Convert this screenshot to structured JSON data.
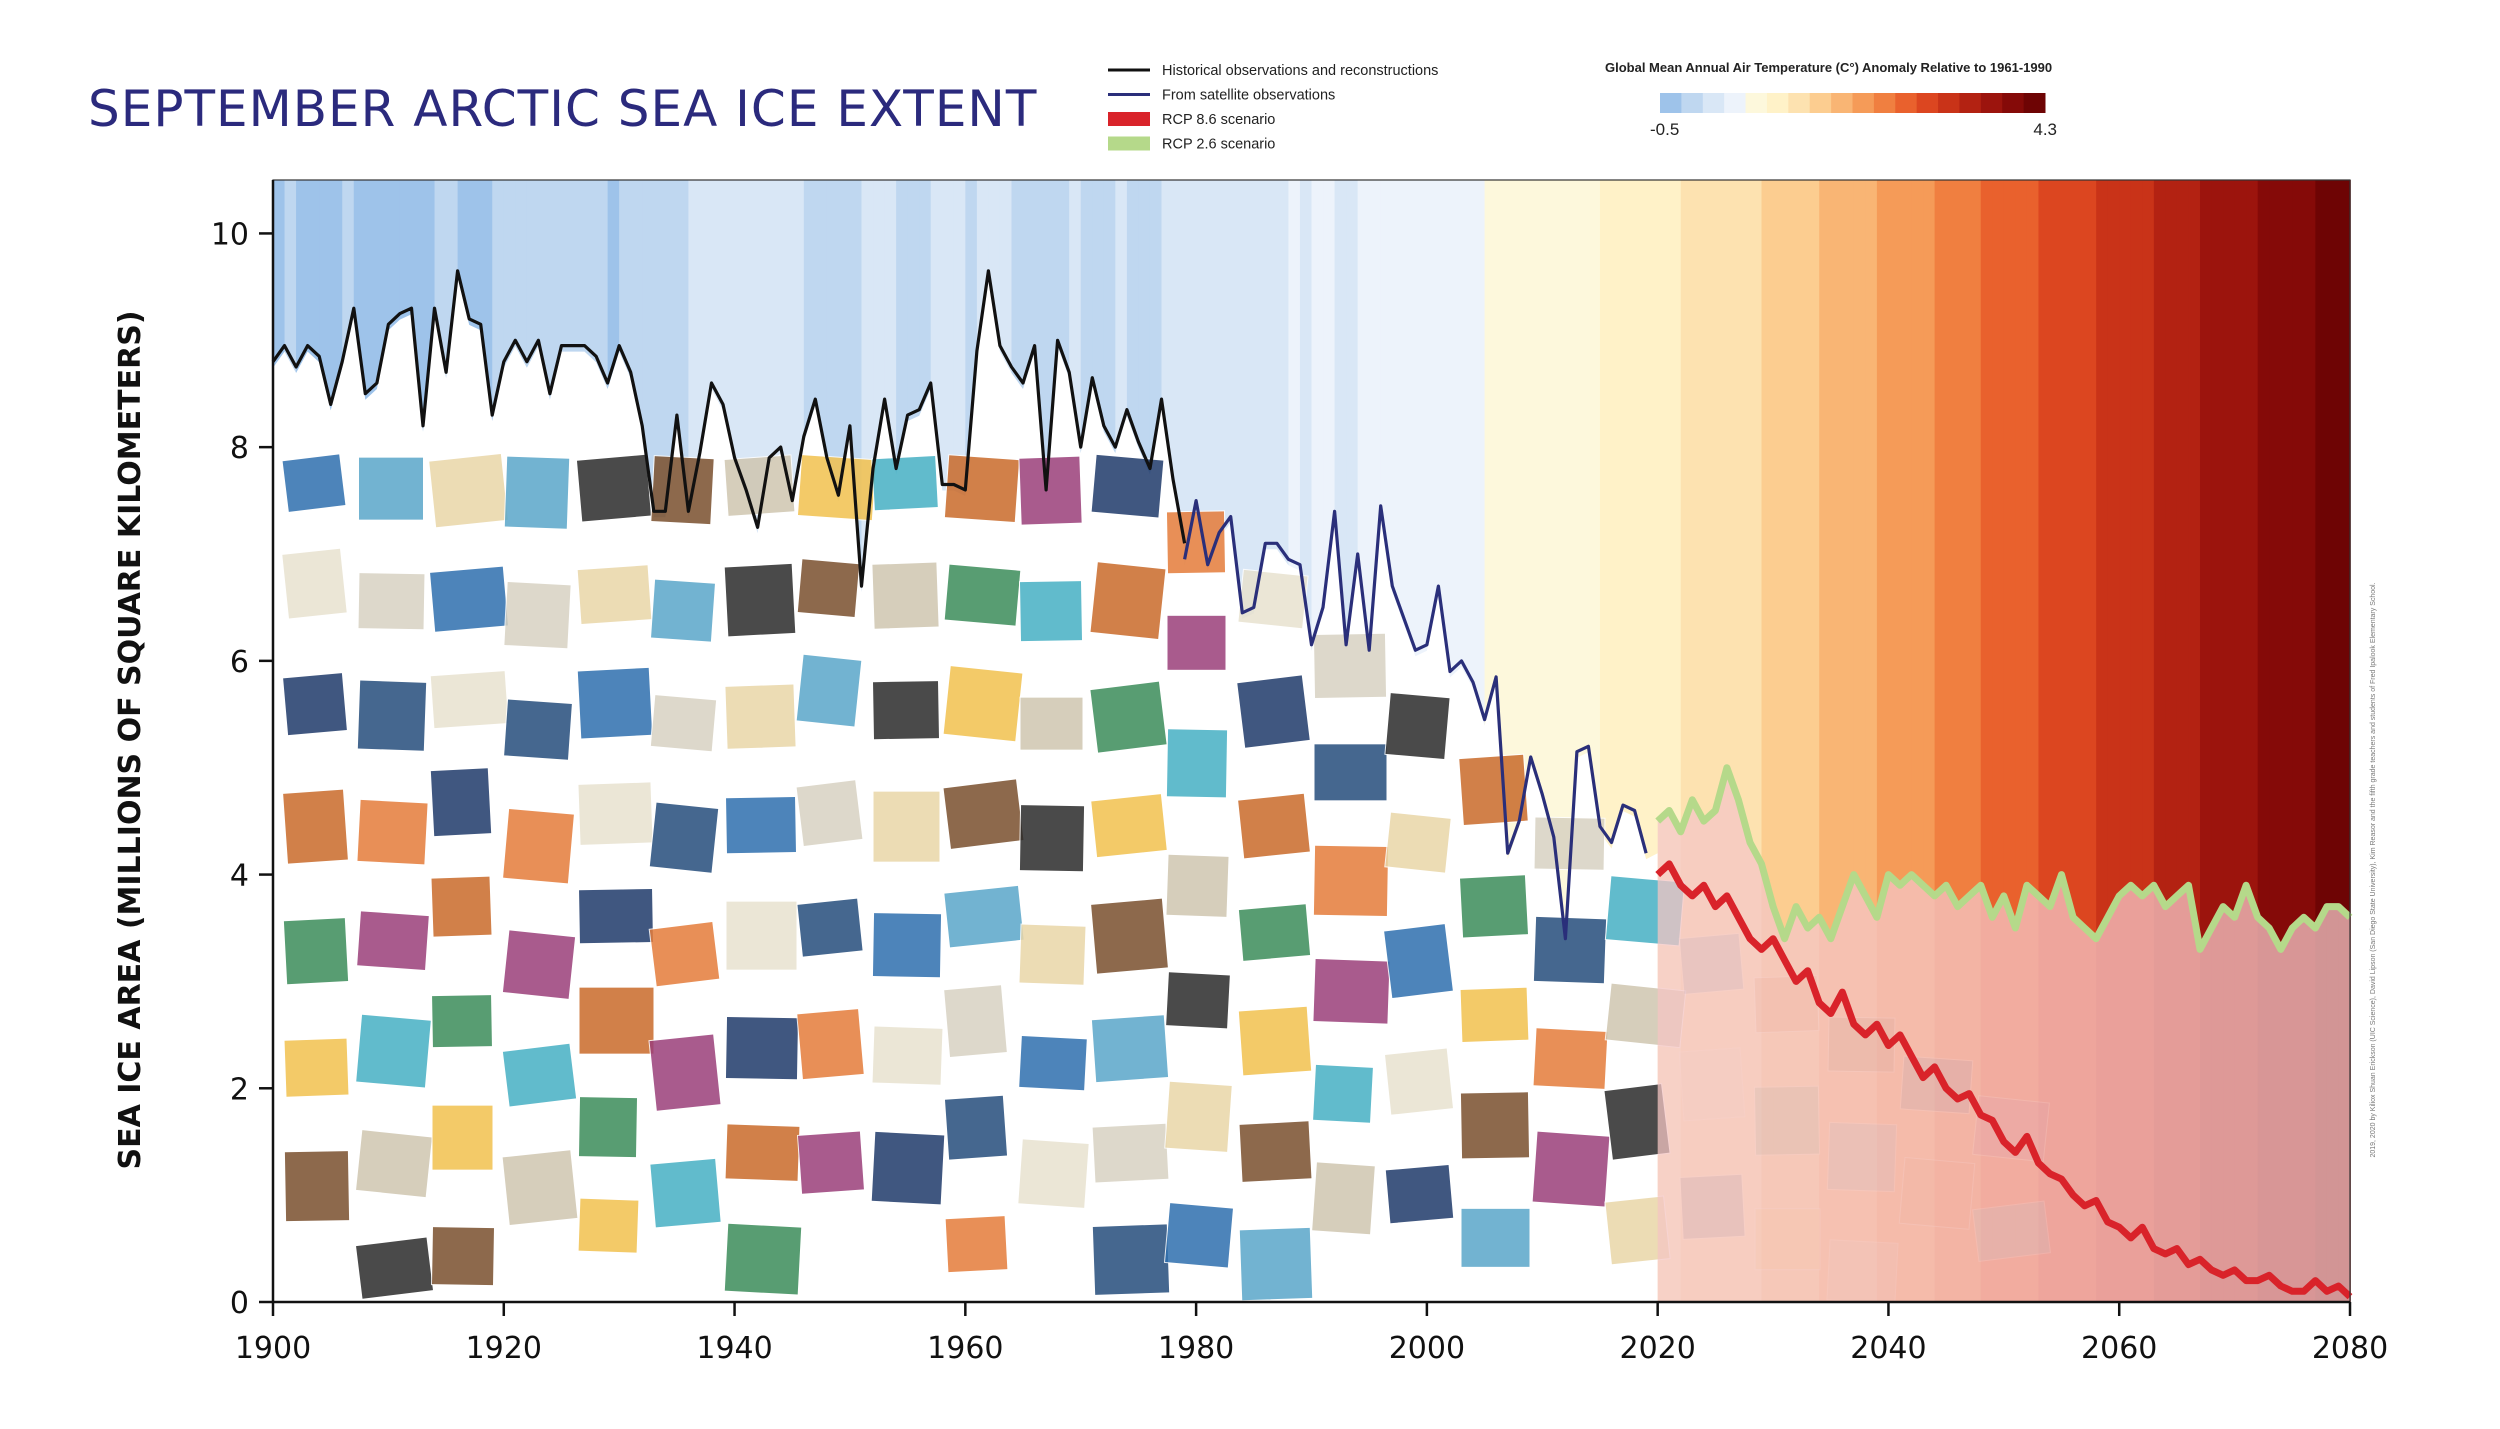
{
  "chart_data": {
    "type": "line",
    "title": "SEPTEMBER ARCTIC SEA ICE EXTENT",
    "ylabel": "SEA ICE AREA (MILLIONS OF SQUARE KILOMETERS)",
    "xlim": [
      1900,
      2080
    ],
    "ylim": [
      0,
      10.5
    ],
    "x_ticks": [
      "1900",
      "1920",
      "1940",
      "1960",
      "1980",
      "2000",
      "2020",
      "2040",
      "2060",
      "2080"
    ],
    "y_ticks": [
      "0",
      "2",
      "4",
      "6",
      "8",
      "10"
    ],
    "legend": [
      {
        "name": "Historical observations and reconstructions",
        "color": "#111111",
        "style": "line"
      },
      {
        "name": "From satellite observations",
        "color": "#2a2f7a",
        "style": "line"
      },
      {
        "name": "RCP 8.6 scenario",
        "color": "#d9232a",
        "style": "box"
      },
      {
        "name": "RCP 2.6 scenario",
        "color": "#b5d98a",
        "style": "box"
      }
    ],
    "color_scale": {
      "title": "Global Mean Annual Air Temperature (C°) Anomaly Relative to 1961-1990",
      "min_label": "-0.5",
      "max_label": "4.3",
      "colors": [
        "#9ec3ea",
        "#bfd7f0",
        "#d9e7f6",
        "#edf3fb",
        "#fdf8dc",
        "#fff2c8",
        "#fde2b0",
        "#fccd90",
        "#f9b574",
        "#f59b58",
        "#f07f40",
        "#e9612d",
        "#dc4620",
        "#c93318",
        "#b32212",
        "#9c140d",
        "#850a08",
        "#6e0404"
      ]
    },
    "series": [
      {
        "name": "Historical observations and reconstructions",
        "color": "#111111",
        "x": [
          1900,
          1901,
          1902,
          1903,
          1904,
          1905,
          1906,
          1907,
          1908,
          1909,
          1910,
          1911,
          1912,
          1913,
          1914,
          1915,
          1916,
          1917,
          1918,
          1919,
          1920,
          1921,
          1922,
          1923,
          1924,
          1925,
          1926,
          1927,
          1928,
          1929,
          1930,
          1931,
          1932,
          1933,
          1934,
          1935,
          1936,
          1937,
          1938,
          1939,
          1940,
          1941,
          1942,
          1943,
          1944,
          1945,
          1946,
          1947,
          1948,
          1949,
          1950,
          1951,
          1952,
          1953,
          1954,
          1955,
          1956,
          1957,
          1958,
          1959,
          1960,
          1961,
          1962,
          1963,
          1964,
          1965,
          1966,
          1967,
          1968,
          1969,
          1970,
          1971,
          1972,
          1973,
          1974,
          1975,
          1976,
          1977,
          1978,
          1979
        ],
        "values": [
          8.8,
          8.95,
          8.75,
          8.95,
          8.85,
          8.4,
          8.8,
          9.3,
          8.5,
          8.6,
          9.15,
          9.25,
          9.3,
          8.2,
          9.3,
          8.7,
          9.65,
          9.2,
          9.15,
          8.3,
          8.8,
          9.0,
          8.8,
          9.0,
          8.5,
          8.95,
          8.95,
          8.95,
          8.85,
          8.6,
          8.95,
          8.7,
          8.2,
          7.4,
          7.4,
          8.3,
          7.4,
          7.95,
          8.6,
          8.4,
          7.9,
          7.6,
          7.25,
          7.9,
          8.0,
          7.5,
          8.1,
          8.45,
          7.9,
          7.55,
          8.2,
          6.7,
          7.8,
          8.45,
          7.8,
          8.3,
          8.35,
          8.6,
          7.65,
          7.65,
          7.6,
          8.9,
          9.65,
          8.95,
          8.75,
          8.6,
          8.95,
          7.6,
          9.0,
          8.7,
          8.0,
          8.65,
          8.2,
          8.0,
          8.35,
          8.05,
          7.8,
          8.45,
          7.7,
          7.1
        ]
      },
      {
        "name": "From satellite observations",
        "color": "#2a2f7a",
        "x": [
          1979,
          1980,
          1981,
          1982,
          1983,
          1984,
          1985,
          1986,
          1987,
          1988,
          1989,
          1990,
          1991,
          1992,
          1993,
          1994,
          1995,
          1996,
          1997,
          1998,
          1999,
          2000,
          2001,
          2002,
          2003,
          2004,
          2005,
          2006,
          2007,
          2008,
          2009,
          2010,
          2011,
          2012,
          2013,
          2014,
          2015,
          2016,
          2017,
          2018,
          2019
        ],
        "values": [
          6.95,
          7.5,
          6.9,
          7.2,
          7.35,
          6.45,
          6.5,
          7.1,
          7.1,
          6.95,
          6.9,
          6.15,
          6.5,
          7.4,
          6.15,
          7.0,
          6.1,
          7.45,
          6.7,
          6.4,
          6.1,
          6.15,
          6.7,
          5.9,
          6.0,
          5.8,
          5.45,
          5.85,
          4.2,
          4.5,
          5.1,
          4.75,
          4.35,
          3.4,
          5.15,
          5.2,
          4.45,
          4.3,
          4.65,
          4.6,
          4.2
        ]
      },
      {
        "name": "RCP 2.6 scenario",
        "color": "#b5d98a",
        "x": [
          2020,
          2021,
          2022,
          2023,
          2024,
          2025,
          2026,
          2027,
          2028,
          2029,
          2030,
          2031,
          2032,
          2033,
          2034,
          2035,
          2036,
          2037,
          2038,
          2039,
          2040,
          2041,
          2042,
          2043,
          2044,
          2045,
          2046,
          2047,
          2048,
          2049,
          2050,
          2051,
          2052,
          2053,
          2054,
          2055,
          2056,
          2057,
          2058,
          2059,
          2060,
          2061,
          2062,
          2063,
          2064,
          2065,
          2066,
          2067,
          2068,
          2069,
          2070,
          2071,
          2072,
          2073,
          2074,
          2075,
          2076,
          2077,
          2078,
          2079,
          2080
        ],
        "values": [
          4.5,
          4.6,
          4.4,
          4.7,
          4.5,
          4.6,
          5.0,
          4.7,
          4.3,
          4.1,
          3.7,
          3.4,
          3.7,
          3.5,
          3.6,
          3.4,
          3.7,
          4.0,
          3.8,
          3.6,
          4.0,
          3.9,
          4.0,
          3.9,
          3.8,
          3.9,
          3.7,
          3.8,
          3.9,
          3.6,
          3.8,
          3.5,
          3.9,
          3.8,
          3.7,
          4.0,
          3.6,
          3.5,
          3.4,
          3.6,
          3.8,
          3.9,
          3.8,
          3.9,
          3.7,
          3.8,
          3.9,
          3.3,
          3.5,
          3.7,
          3.6,
          3.9,
          3.6,
          3.5,
          3.3,
          3.5,
          3.6,
          3.5,
          3.7,
          3.7,
          3.6
        ]
      },
      {
        "name": "RCP 8.6 scenario",
        "color": "#d9232a",
        "x": [
          2020,
          2021,
          2022,
          2023,
          2024,
          2025,
          2026,
          2027,
          2028,
          2029,
          2030,
          2031,
          2032,
          2033,
          2034,
          2035,
          2036,
          2037,
          2038,
          2039,
          2040,
          2041,
          2042,
          2043,
          2044,
          2045,
          2046,
          2047,
          2048,
          2049,
          2050,
          2051,
          2052,
          2053,
          2054,
          2055,
          2056,
          2057,
          2058,
          2059,
          2060,
          2061,
          2062,
          2063,
          2064,
          2065,
          2066,
          2067,
          2068,
          2069,
          2070,
          2071,
          2072,
          2073,
          2074,
          2075,
          2076,
          2077,
          2078,
          2079,
          2080
        ],
        "values": [
          4.0,
          4.1,
          3.9,
          3.8,
          3.9,
          3.7,
          3.8,
          3.6,
          3.4,
          3.3,
          3.4,
          3.2,
          3.0,
          3.1,
          2.8,
          2.7,
          2.9,
          2.6,
          2.5,
          2.6,
          2.4,
          2.5,
          2.3,
          2.1,
          2.2,
          2.0,
          1.9,
          1.95,
          1.75,
          1.7,
          1.5,
          1.4,
          1.55,
          1.3,
          1.2,
          1.15,
          1.0,
          0.9,
          0.95,
          0.75,
          0.7,
          0.6,
          0.7,
          0.5,
          0.45,
          0.5,
          0.35,
          0.4,
          0.3,
          0.25,
          0.3,
          0.2,
          0.2,
          0.25,
          0.15,
          0.1,
          0.1,
          0.2,
          0.1,
          0.15,
          0.05
        ]
      }
    ],
    "background_stripes": {
      "x": [
        1900,
        1901,
        1902,
        1903,
        1904,
        1905,
        1906,
        1907,
        1908,
        1909,
        1910,
        1911,
        1912,
        1913,
        1914,
        1915,
        1916,
        1917,
        1918,
        1919,
        1920,
        1921,
        1922,
        1923,
        1924,
        1925,
        1926,
        1927,
        1928,
        1929,
        1930,
        1931,
        1932,
        1933,
        1934,
        1935,
        1936,
        1937,
        1938,
        1939,
        1940,
        1941,
        1942,
        1943,
        1944,
        1945,
        1946,
        1947,
        1948,
        1949,
        1950,
        1951,
        1952,
        1953,
        1954,
        1955,
        1956,
        1957,
        1958,
        1959,
        1960,
        1961,
        1962,
        1963,
        1964,
        1965,
        1966,
        1967,
        1968,
        1969,
        1970,
        1971,
        1972,
        1973,
        1974,
        1975,
        1976,
        1977,
        1978,
        1979,
        1980,
        1981,
        1982,
        1983,
        1984,
        1985,
        1986,
        1987,
        1988,
        1989,
        1990,
        1991,
        1992,
        1993,
        1994,
        1995,
        1996,
        1997,
        1998,
        1999,
        2000,
        2001,
        2002,
        2003,
        2004,
        2005,
        2006,
        2007,
        2008,
        2009,
        2010,
        2011,
        2012,
        2013,
        2014,
        2015,
        2016,
        2017,
        2018,
        2019,
        2020,
        2021,
        2022,
        2023,
        2024,
        2025,
        2026,
        2027,
        2028,
        2029,
        2030,
        2031,
        2032,
        2033,
        2034,
        2035,
        2036,
        2037,
        2038,
        2039,
        2040,
        2041,
        2042,
        2043,
        2044,
        2045,
        2046,
        2047,
        2048,
        2049,
        2050,
        2051,
        2052,
        2053,
        2054,
        2055,
        2056,
        2057,
        2058,
        2059,
        2060,
        2061,
        2062,
        2063,
        2064,
        2065,
        2066,
        2067,
        2068,
        2069,
        2070,
        2071,
        2072,
        2073,
        2074,
        2075,
        2076,
        2077,
        2078,
        2079
      ],
      "anomaly": [
        -0.3,
        -0.2,
        -0.3,
        -0.35,
        -0.3,
        -0.25,
        -0.2,
        -0.3,
        -0.3,
        -0.35,
        -0.3,
        -0.45,
        -0.3,
        -0.25,
        -0.2,
        -0.2,
        -0.3,
        -0.3,
        -0.25,
        -0.2,
        -0.2,
        -0.15,
        -0.2,
        -0.15,
        -0.2,
        -0.1,
        -0.1,
        -0.1,
        -0.15,
        -0.25,
        -0.05,
        -0.1,
        -0.1,
        -0.15,
        -0.05,
        -0.05,
        0.05,
        0.1,
        0.1,
        0.05,
        0.1,
        0.1,
        0.05,
        0.1,
        0.15,
        0.1,
        0.0,
        0.0,
        0.0,
        0.0,
        -0.05,
        0.05,
        0.05,
        0.1,
        -0.05,
        -0.05,
        -0.1,
        0.05,
        0.1,
        0.05,
        0.0,
        0.05,
        0.05,
        0.05,
        -0.1,
        -0.05,
        0.0,
        0.0,
        -0.05,
        0.05,
        0.0,
        -0.05,
        0.0,
        0.1,
        -0.05,
        0.0,
        -0.1,
        0.1,
        0.05,
        0.1,
        0.15,
        0.15,
        0.1,
        0.2,
        0.1,
        0.05,
        0.1,
        0.2,
        0.3,
        0.25,
        0.35,
        0.3,
        0.2,
        0.25,
        0.3,
        0.4,
        0.3,
        0.45,
        0.55,
        0.35,
        0.45,
        0.5,
        0.55,
        0.55,
        0.5,
        0.6,
        0.6,
        0.6,
        0.6,
        0.6,
        0.7,
        0.65,
        0.6,
        0.65,
        0.7,
        0.85,
        0.95,
        0.9,
        0.85,
        0.9,
        1.0,
        1.05,
        1.1,
        1.1,
        1.15,
        1.2,
        1.25,
        1.3,
        1.35,
        1.4,
        1.45,
        1.5,
        1.55,
        1.6,
        1.65,
        1.7,
        1.75,
        1.8,
        1.85,
        1.9,
        2.0,
        2.05,
        2.1,
        2.15,
        2.2,
        2.25,
        2.3,
        2.35,
        2.45,
        2.5,
        2.55,
        2.6,
        2.65,
        2.7,
        2.75,
        2.85,
        2.9,
        2.95,
        3.0,
        3.05,
        3.1,
        3.15,
        3.2,
        3.3,
        3.35,
        3.4,
        3.45,
        3.5,
        3.55,
        3.6,
        3.7,
        3.75,
        3.8,
        3.85,
        3.9,
        3.95,
        4.0,
        4.1,
        4.15,
        4.2,
        4.25,
        4.3
      ]
    }
  },
  "credit_text": "2019, 2020 by Kiliox Shuan Erickson (UIC Science), David Lipson (San Diego State University), Kim Reasor and the fifth grade teachers and students of Fred Ipalook Elementary School."
}
